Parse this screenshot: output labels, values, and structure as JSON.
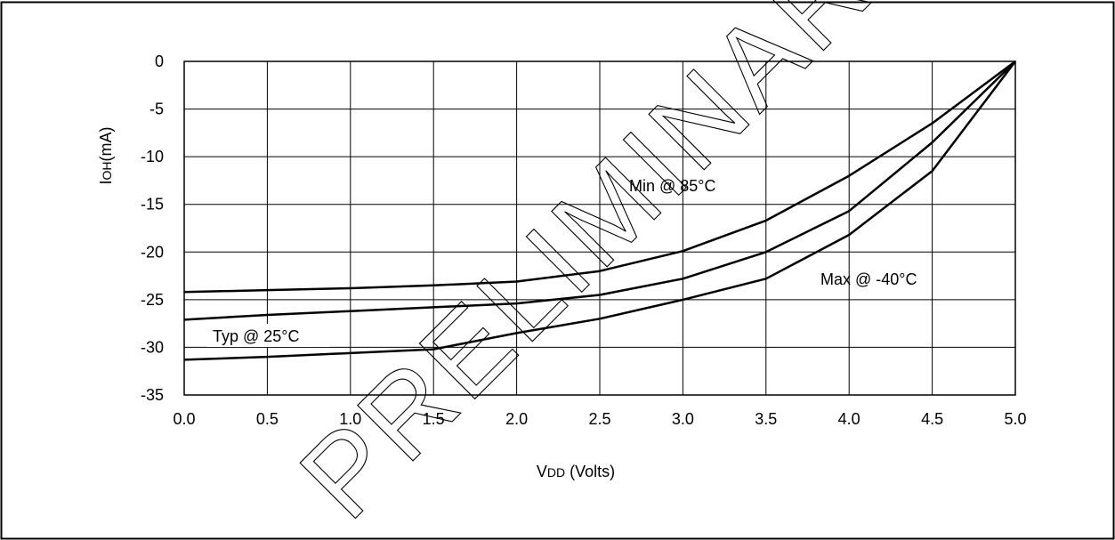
{
  "chart_data": {
    "type": "line",
    "xlabel": "VDD (Volts)",
    "xlabel_main": "V",
    "xlabel_sub": "DD",
    "xlabel_rest": " (Volts)",
    "ylabel": "IOH(mA)",
    "ylabel_main": "I",
    "ylabel_sub": "OH",
    "ylabel_rest": "(mA)",
    "xlim": [
      0,
      5
    ],
    "ylim": [
      -35,
      0
    ],
    "x_ticks": [
      "0.0",
      "0.5",
      "1.0",
      "1.5",
      "2.0",
      "2.5",
      "3.0",
      "3.5",
      "4.0",
      "4.5",
      "5.0"
    ],
    "y_ticks": [
      "0",
      "-5",
      "-10",
      "-15",
      "-20",
      "-25",
      "-30",
      "-35"
    ],
    "grid": true,
    "x": [
      0.0,
      0.5,
      1.0,
      1.5,
      2.0,
      2.5,
      3.0,
      3.5,
      4.0,
      4.5,
      5.0
    ],
    "series": [
      {
        "name": "Min @ 85°C",
        "values": [
          -24.2,
          -24.0,
          -23.8,
          -23.5,
          -23.1,
          -22.0,
          -19.9,
          -16.7,
          -12.0,
          -6.5,
          0.0
        ]
      },
      {
        "name": "Typ @ 25°C",
        "values": [
          -27.1,
          -26.6,
          -26.2,
          -25.8,
          -25.4,
          -24.5,
          -22.8,
          -20.0,
          -15.7,
          -8.5,
          0.0
        ]
      },
      {
        "name": "Max @ -40°C",
        "values": [
          -31.3,
          -31.0,
          -30.6,
          -30.2,
          -28.5,
          -27.0,
          -25.0,
          -22.8,
          -18.2,
          -11.5,
          0.0
        ]
      }
    ],
    "annotations": [
      "Min @ 85°C",
      "Typ @ 25°C",
      "Max @ -40°C"
    ],
    "watermark": "PRELIMINARY"
  }
}
